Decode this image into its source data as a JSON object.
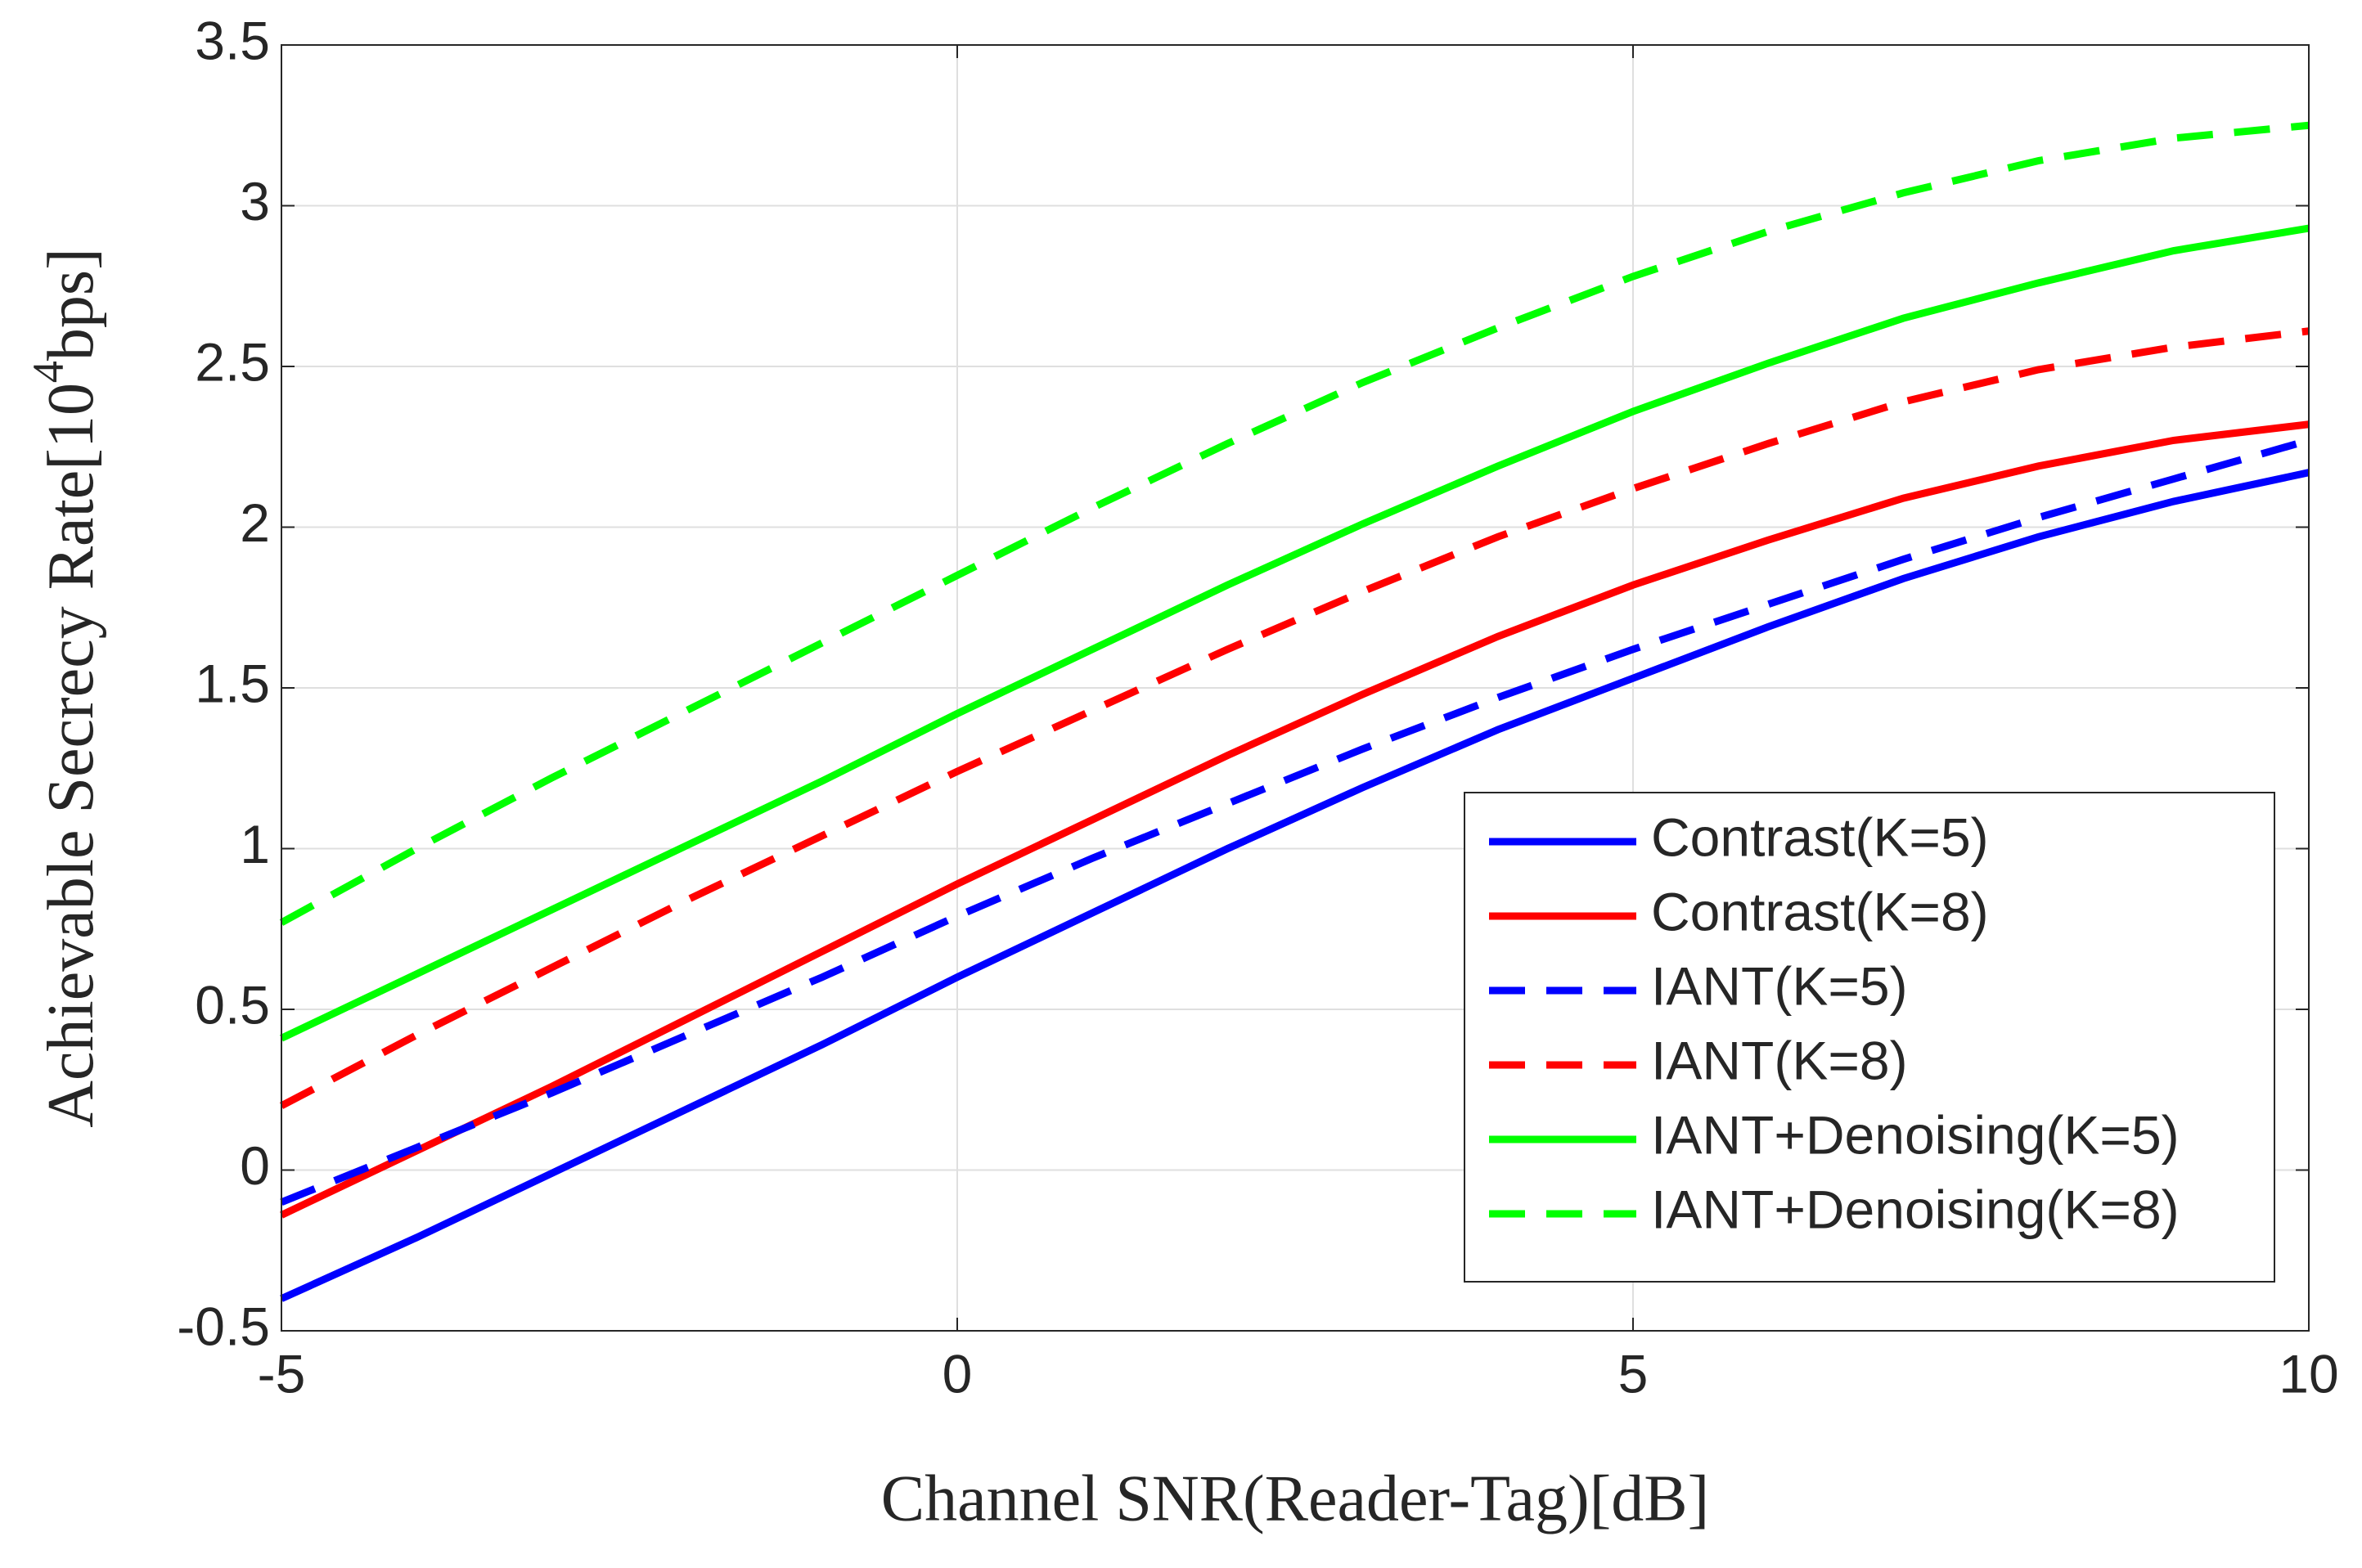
{
  "chart_data": {
    "type": "line",
    "x_label": "Channel SNR(Reader-Tag)[dB]",
    "y_label": [
      "Achievable Secrecy Rate[10",
      "4",
      "bps]"
    ],
    "x": [
      -5,
      -4,
      -3,
      -2,
      -1,
      0,
      1,
      2,
      3,
      4,
      5,
      6,
      7,
      8,
      9,
      10
    ],
    "series": [
      {
        "name": "Contrast(K=5)",
        "color": "#0000ff",
        "dash": "solid",
        "values": [
          -0.4,
          -0.21,
          -0.01,
          0.19,
          0.39,
          0.6,
          0.8,
          1.0,
          1.19,
          1.37,
          1.53,
          1.69,
          1.84,
          1.97,
          2.08,
          2.17
        ]
      },
      {
        "name": "Contrast(K=8)",
        "color": "#ff0000",
        "dash": "solid",
        "values": [
          -0.14,
          0.06,
          0.26,
          0.47,
          0.68,
          0.89,
          1.09,
          1.29,
          1.48,
          1.66,
          1.82,
          1.96,
          2.09,
          2.19,
          2.27,
          2.32
        ]
      },
      {
        "name": "IANT(K=5)",
        "color": "#0000ff",
        "dash": "dashed",
        "values": [
          -0.1,
          0.07,
          0.24,
          0.42,
          0.6,
          0.79,
          0.97,
          1.14,
          1.31,
          1.47,
          1.62,
          1.76,
          1.9,
          2.03,
          2.15,
          2.27
        ]
      },
      {
        "name": "IANT(K=8)",
        "color": "#ff0000",
        "dash": "dashed",
        "values": [
          0.2,
          0.42,
          0.63,
          0.84,
          1.04,
          1.24,
          1.43,
          1.62,
          1.8,
          1.97,
          2.12,
          2.26,
          2.39,
          2.49,
          2.56,
          2.61
        ]
      },
      {
        "name": "IANT+Denoising(K=5)",
        "color": "#00ff00",
        "dash": "solid",
        "values": [
          0.41,
          0.61,
          0.81,
          1.01,
          1.21,
          1.42,
          1.62,
          1.82,
          2.01,
          2.19,
          2.36,
          2.51,
          2.65,
          2.76,
          2.86,
          2.93
        ]
      },
      {
        "name": "IANT+Denoising(K=8)",
        "color": "#00ff00",
        "dash": "dashed",
        "values": [
          0.77,
          1.0,
          1.22,
          1.43,
          1.64,
          1.85,
          2.06,
          2.26,
          2.45,
          2.62,
          2.78,
          2.92,
          3.04,
          3.14,
          3.21,
          3.25
        ]
      }
    ],
    "xlim": [
      -5,
      10
    ],
    "xticks": [
      -5,
      0,
      5,
      10
    ],
    "ylim": [
      -0.5,
      3.5
    ],
    "yticks": [
      -0.5,
      0,
      0.5,
      1,
      1.5,
      2,
      2.5,
      3,
      3.5
    ],
    "grid": true,
    "legend": "southeast"
  }
}
